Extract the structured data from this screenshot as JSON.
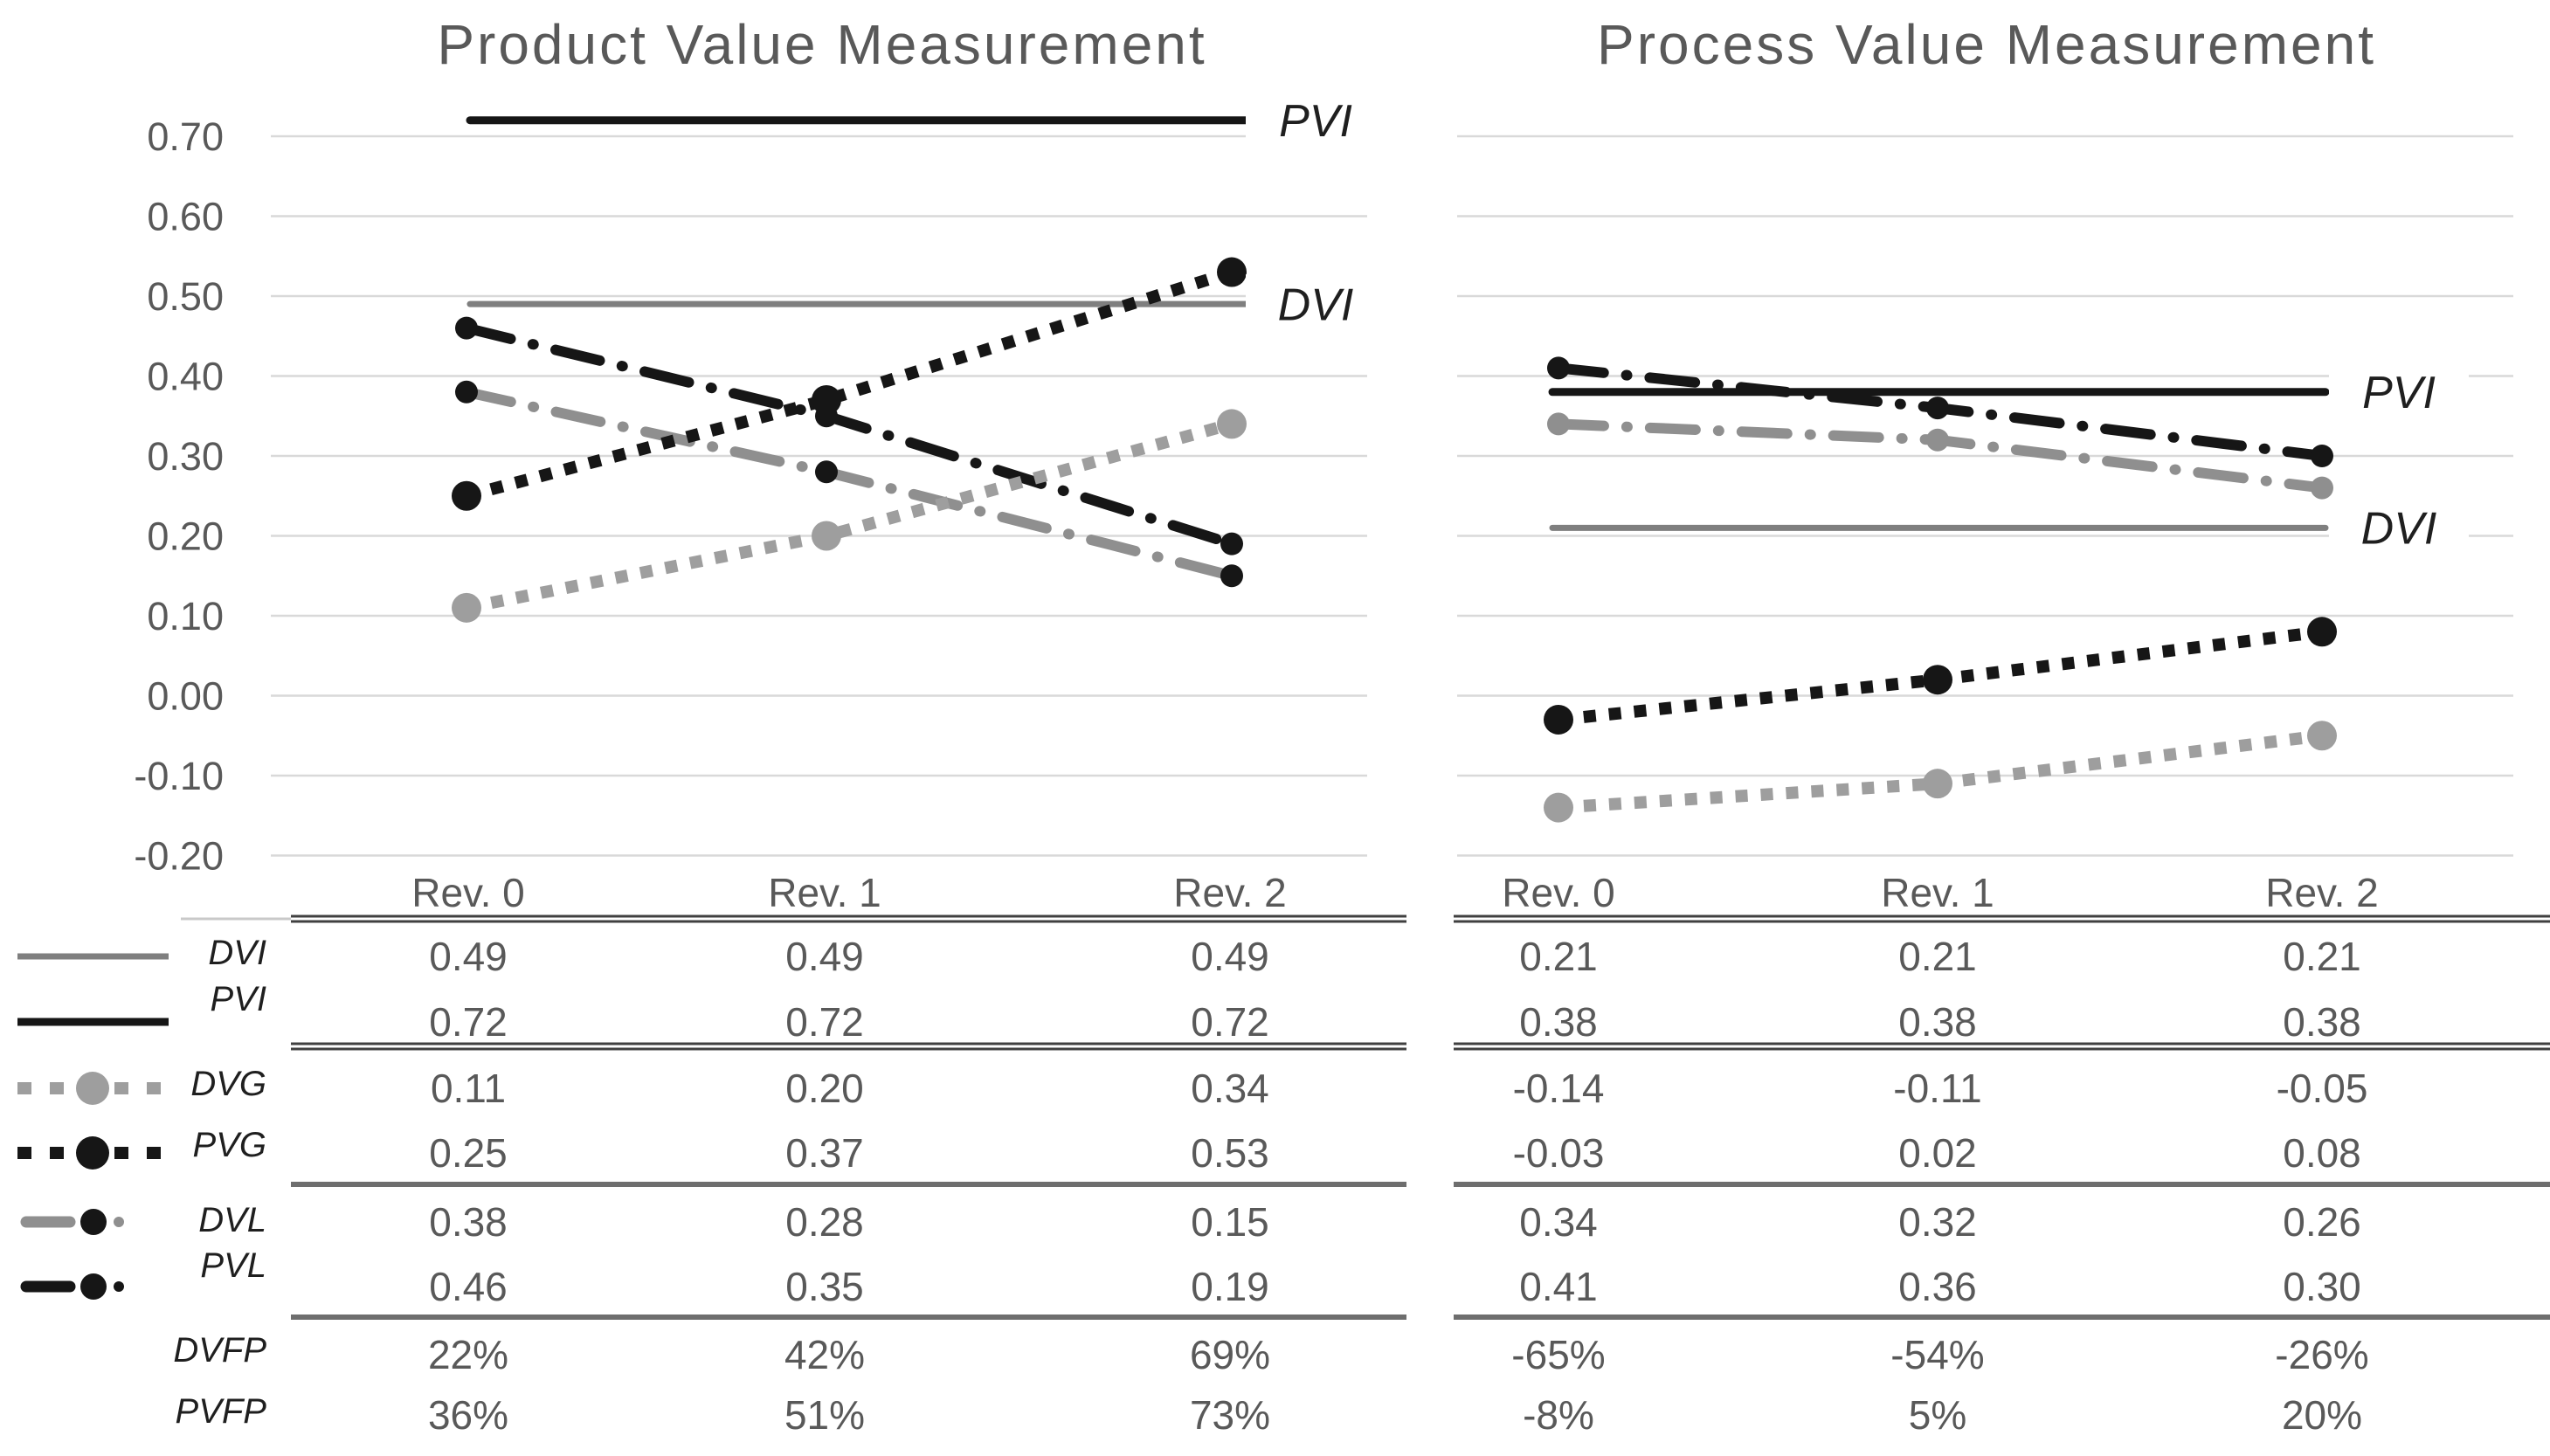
{
  "chart_data": [
    {
      "type": "line",
      "title": "Product Value Measurement",
      "categories": [
        "Rev. 0",
        "Rev. 1",
        "Rev. 2"
      ],
      "ylim": [
        -0.2,
        0.72
      ],
      "ytick_values": [
        0.7,
        0.6,
        0.5,
        0.4,
        0.3,
        0.2,
        0.1,
        0.0,
        -0.1,
        -0.2
      ],
      "ytick_labels": [
        "0.70",
        "0.60",
        "0.50",
        "0.40",
        "0.30",
        "0.20",
        "0.10",
        "0.00",
        "-0.10",
        "-0.20"
      ],
      "grid": true,
      "legend_position": "table-left",
      "annotations": [
        {
          "text": "PVI",
          "value": 0.72
        },
        {
          "text": "DVI",
          "value": 0.49
        }
      ],
      "series": [
        {
          "name": "DVI",
          "values": [
            0.49,
            0.49,
            0.49
          ],
          "line": "solid",
          "color": "#7f7f7f",
          "stroke_width": 7,
          "marker": false
        },
        {
          "name": "PVI",
          "values": [
            0.72,
            0.72,
            0.72
          ],
          "line": "solid",
          "color": "#161616",
          "stroke_width": 9,
          "marker": false
        },
        {
          "name": "DVL",
          "values": [
            0.38,
            0.28,
            0.15
          ],
          "line": "dashdot",
          "color": "#8f8f8f",
          "marker": true,
          "marker_color": "#161616",
          "marker_radius": 13
        },
        {
          "name": "PVL",
          "values": [
            0.46,
            0.35,
            0.19
          ],
          "line": "dashdot",
          "color": "#161616",
          "marker": true,
          "marker_color": "#161616",
          "marker_radius": 13
        },
        {
          "name": "DVG",
          "values": [
            0.11,
            0.2,
            0.34
          ],
          "line": "dotted",
          "color": "#9e9e9e",
          "marker": true,
          "marker_color": "#9e9e9e",
          "marker_radius": 17
        },
        {
          "name": "PVG",
          "values": [
            0.25,
            0.37,
            0.53
          ],
          "line": "dotted",
          "color": "#161616",
          "marker": true,
          "marker_color": "#161616",
          "marker_radius": 17
        }
      ]
    },
    {
      "type": "line",
      "title": "Process Value Measurement",
      "categories": [
        "Rev. 0",
        "Rev. 1",
        "Rev. 2"
      ],
      "ylim": [
        -0.2,
        0.72
      ],
      "ytick_values": [
        0.7,
        0.6,
        0.5,
        0.4,
        0.3,
        0.2,
        0.1,
        0.0,
        -0.1,
        -0.2
      ],
      "ytick_labels": [
        "0.70",
        "0.60",
        "0.50",
        "0.40",
        "0.30",
        "0.20",
        "0.10",
        "0.00",
        "-0.10",
        "-0.20"
      ],
      "grid": true,
      "legend_position": "table-left",
      "annotations": [
        {
          "text": "PVI",
          "value": 0.38
        },
        {
          "text": "DVI",
          "value": 0.21
        }
      ],
      "series": [
        {
          "name": "DVI",
          "values": [
            0.21,
            0.21,
            0.21
          ],
          "line": "solid",
          "color": "#7f7f7f",
          "stroke_width": 7,
          "marker": false
        },
        {
          "name": "PVI",
          "values": [
            0.38,
            0.38,
            0.38
          ],
          "line": "solid",
          "color": "#161616",
          "stroke_width": 9,
          "marker": false
        },
        {
          "name": "DVL",
          "values": [
            0.34,
            0.32,
            0.26
          ],
          "line": "dashdot",
          "color": "#8f8f8f",
          "marker": true,
          "marker_color": "#8f8f8f",
          "marker_radius": 13
        },
        {
          "name": "PVL",
          "values": [
            0.41,
            0.36,
            0.3
          ],
          "line": "dashdot",
          "color": "#161616",
          "marker": true,
          "marker_color": "#161616",
          "marker_radius": 13
        },
        {
          "name": "DVG",
          "values": [
            -0.14,
            -0.11,
            -0.05
          ],
          "line": "dotted",
          "color": "#9e9e9e",
          "marker": true,
          "marker_color": "#9e9e9e",
          "marker_radius": 17
        },
        {
          "name": "PVG",
          "values": [
            -0.03,
            0.02,
            0.08
          ],
          "line": "dotted",
          "color": "#161616",
          "marker": true,
          "marker_color": "#161616",
          "marker_radius": 17
        }
      ]
    }
  ],
  "table": {
    "legend_labels": [
      "DVI",
      "PVI",
      "DVG",
      "PVG",
      "DVL",
      "PVL",
      "DVFP",
      "PVFP"
    ],
    "left_headers": [
      "Rev. 0",
      "Rev. 1",
      "Rev. 2"
    ],
    "right_headers": [
      "Rev. 0",
      "Rev. 1",
      "Rev. 2"
    ],
    "left_rows": [
      [
        "0.49",
        "0.49",
        "0.49"
      ],
      [
        "0.72",
        "0.72",
        "0.72"
      ],
      [
        "0.11",
        "0.20",
        "0.34"
      ],
      [
        "0.25",
        "0.37",
        "0.53"
      ],
      [
        "0.38",
        "0.28",
        "0.15"
      ],
      [
        "0.46",
        "0.35",
        "0.19"
      ],
      [
        "22%",
        "42%",
        "69%"
      ],
      [
        "36%",
        "51%",
        "73%"
      ]
    ],
    "right_rows": [
      [
        "0.21",
        "0.21",
        "0.21"
      ],
      [
        "0.38",
        "0.38",
        "0.38"
      ],
      [
        "-0.14",
        "-0.11",
        "-0.05"
      ],
      [
        "-0.03",
        "0.02",
        "0.08"
      ],
      [
        "0.34",
        "0.32",
        "0.26"
      ],
      [
        "0.41",
        "0.36",
        "0.30"
      ],
      [
        "-65%",
        "-54%",
        "-26%"
      ],
      [
        "-8%",
        "5%",
        "20%"
      ]
    ]
  },
  "colors": {
    "grid": "#d9d9d9",
    "tick": "#595959",
    "title": "#595959",
    "value": "#595959",
    "annotation": "#1f1f1f",
    "legend_label": "#1f1f1f",
    "rule_dark": "#404040",
    "rule_gray": "#6e6e6e",
    "rule_light": "#c9c9c9"
  }
}
